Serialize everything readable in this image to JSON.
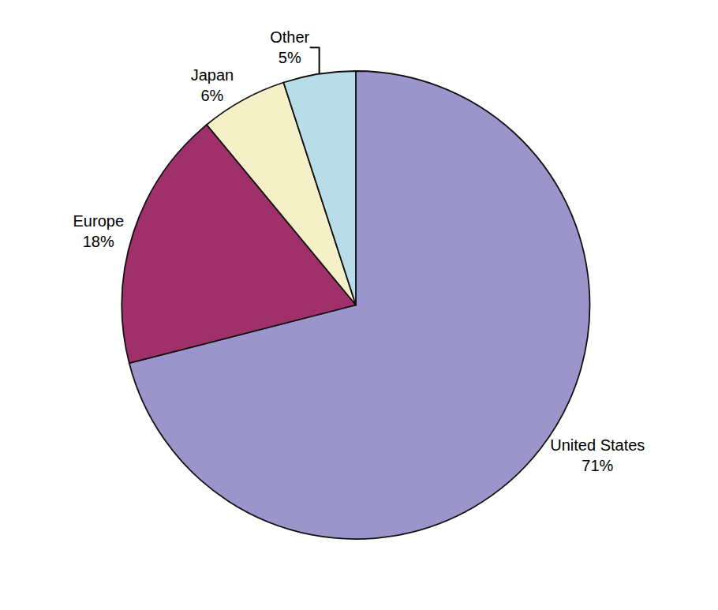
{
  "chart_data": {
    "type": "pie",
    "categories": [
      "United States",
      "Europe",
      "Japan",
      "Other"
    ],
    "values": [
      71,
      18,
      6,
      5
    ],
    "value_labels": [
      "71%",
      "18%",
      "6%",
      "5%"
    ],
    "colors": [
      "#9B95CC",
      "#A0306A",
      "#F5F0C8",
      "#B8DDE8"
    ],
    "data_labels": true
  }
}
